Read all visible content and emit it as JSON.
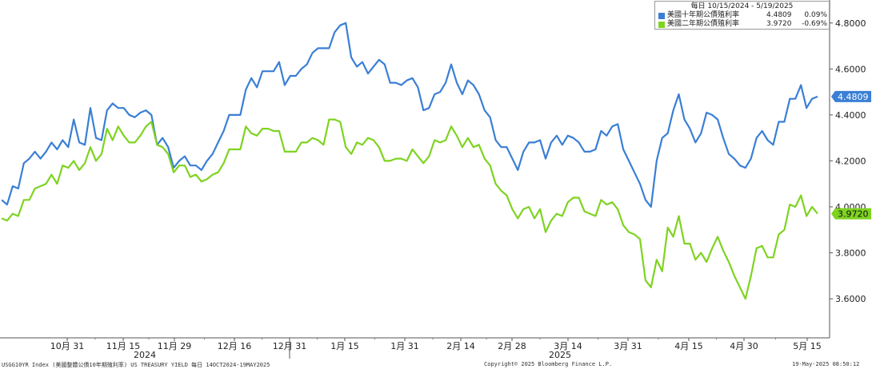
{
  "legend": {
    "header": "每日 10/15/2024 - 5/19/2025",
    "series": [
      {
        "name": "美國十年期公債殖利率",
        "value": "4.4809",
        "change": "0.09%",
        "color": "#3a7fd5"
      },
      {
        "name": "美國二年期公債殖利率",
        "value": "3.9720",
        "change": "-0.69%",
        "color": "#7ed321"
      }
    ]
  },
  "footer": {
    "left": "USGG10YR Index (美國整體公債10年期殖利率) US TREASURY YIELD  每日 14OCT2024-19MAY2025",
    "center": "Copyright© 2025 Bloomberg Finance L.P.",
    "right": "19-May-2025 08:50:12"
  },
  "chart_data": {
    "type": "line",
    "grid": false,
    "legend_position": "top-right",
    "ylim": [
      3.43,
      4.9
    ],
    "x_tick_labels": [
      "10月 31",
      "11月 15",
      "11月 29",
      "12月 16",
      "12月 31",
      "1月 15",
      "1月 31",
      "2月 14",
      "2月 28",
      "3月 14",
      "3月 31",
      "4月 15",
      "4月 30",
      "5月 15"
    ],
    "year_labels": [
      "2024",
      "2025"
    ],
    "y_ticks": [
      3.6,
      3.8,
      4.0,
      4.2,
      4.4,
      4.6,
      4.8
    ],
    "y_tick_labels": [
      "3.6000",
      "3.8000",
      "4.0000",
      "4.2000",
      "4.4000",
      "4.6000",
      "4.8000"
    ],
    "last_value_labels": [
      "4.4809",
      "3.9720"
    ],
    "series": [
      {
        "name": "美國十年期公債殖利率",
        "color": "#3a7fd5",
        "values": [
          4.03,
          4.01,
          4.09,
          4.08,
          4.19,
          4.21,
          4.24,
          4.21,
          4.24,
          4.28,
          4.25,
          4.29,
          4.26,
          4.38,
          4.28,
          4.27,
          4.43,
          4.3,
          4.29,
          4.42,
          4.45,
          4.43,
          4.43,
          4.4,
          4.39,
          4.41,
          4.42,
          4.4,
          4.27,
          4.3,
          4.26,
          4.17,
          4.2,
          4.22,
          4.18,
          4.18,
          4.16,
          4.2,
          4.23,
          4.28,
          4.33,
          4.4,
          4.4,
          4.4,
          4.51,
          4.56,
          4.52,
          4.59,
          4.59,
          4.59,
          4.63,
          4.53,
          4.57,
          4.57,
          4.6,
          4.62,
          4.67,
          4.69,
          4.69,
          4.69,
          4.76,
          4.79,
          4.8,
          4.65,
          4.61,
          4.63,
          4.58,
          4.61,
          4.64,
          4.62,
          4.54,
          4.54,
          4.53,
          4.55,
          4.56,
          4.52,
          4.42,
          4.43,
          4.49,
          4.5,
          4.54,
          4.62,
          4.54,
          4.49,
          4.55,
          4.53,
          4.49,
          4.42,
          4.39,
          4.29,
          4.26,
          4.26,
          4.21,
          4.16,
          4.24,
          4.28,
          4.28,
          4.29,
          4.21,
          4.28,
          4.31,
          4.27,
          4.31,
          4.3,
          4.28,
          4.24,
          4.24,
          4.25,
          4.33,
          4.31,
          4.35,
          4.36,
          4.25,
          4.2,
          4.15,
          4.1,
          4.03,
          4.0,
          4.2,
          4.3,
          4.32,
          4.42,
          4.49,
          4.38,
          4.34,
          4.28,
          4.32,
          4.41,
          4.4,
          4.38,
          4.3,
          4.23,
          4.21,
          4.18,
          4.17,
          4.21,
          4.3,
          4.33,
          4.29,
          4.27,
          4.37,
          4.37,
          4.47,
          4.47,
          4.53,
          4.43,
          4.47,
          4.48
        ]
      },
      {
        "name": "美國二年期公債殖利率",
        "color": "#7ed321",
        "values": [
          3.95,
          3.94,
          3.97,
          3.96,
          4.03,
          4.03,
          4.08,
          4.09,
          4.1,
          4.14,
          4.1,
          4.18,
          4.17,
          4.2,
          4.16,
          4.19,
          4.26,
          4.2,
          4.23,
          4.34,
          4.29,
          4.35,
          4.31,
          4.28,
          4.28,
          4.31,
          4.35,
          4.37,
          4.27,
          4.26,
          4.23,
          4.15,
          4.18,
          4.18,
          4.13,
          4.14,
          4.11,
          4.12,
          4.14,
          4.15,
          4.19,
          4.25,
          4.25,
          4.25,
          4.35,
          4.32,
          4.31,
          4.34,
          4.34,
          4.33,
          4.33,
          4.24,
          4.24,
          4.24,
          4.28,
          4.28,
          4.3,
          4.29,
          4.27,
          4.38,
          4.38,
          4.37,
          4.26,
          4.23,
          4.28,
          4.27,
          4.3,
          4.29,
          4.26,
          4.2,
          4.2,
          4.21,
          4.21,
          4.2,
          4.25,
          4.22,
          4.19,
          4.22,
          4.29,
          4.28,
          4.29,
          4.35,
          4.31,
          4.26,
          4.3,
          4.26,
          4.27,
          4.21,
          4.18,
          4.1,
          4.07,
          4.05,
          3.99,
          3.95,
          3.99,
          4.0,
          3.95,
          3.99,
          3.89,
          3.94,
          3.97,
          3.96,
          4.02,
          4.04,
          4.04,
          3.98,
          3.97,
          3.96,
          4.03,
          4.01,
          4.02,
          3.99,
          3.92,
          3.89,
          3.88,
          3.86,
          3.68,
          3.65,
          3.77,
          3.72,
          3.91,
          3.87,
          3.96,
          3.84,
          3.84,
          3.77,
          3.8,
          3.76,
          3.82,
          3.87,
          3.81,
          3.76,
          3.7,
          3.65,
          3.6,
          3.7,
          3.82,
          3.83,
          3.78,
          3.78,
          3.88,
          3.9,
          4.01,
          4.0,
          4.05,
          3.96,
          4.0,
          3.97
        ]
      }
    ]
  }
}
